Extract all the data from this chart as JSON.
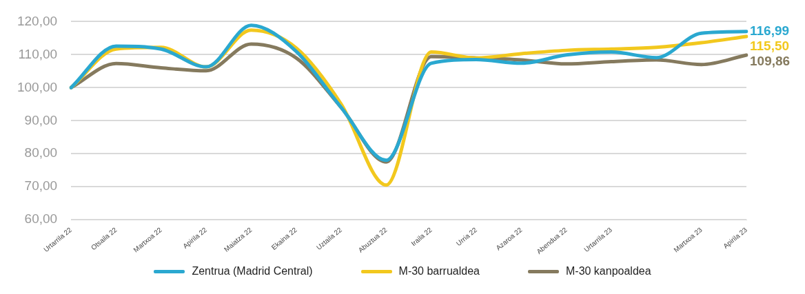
{
  "chart_data": {
    "type": "line",
    "categories": [
      "Urtarrila 22",
      "Otsaila 22",
      "Martxoa 22",
      "Apirila 22",
      "Maiatza 22",
      "Ekaina 22",
      "Uztaila 22",
      "Abuztua 22",
      "Iraila 22",
      "Urria 22",
      "Azaroa 22",
      "Abendua 22",
      "Urtarrila 23",
      null,
      "Martxoa 23",
      "Apirila 23"
    ],
    "series": [
      {
        "name": "Zentrua (Madrid Central)",
        "color": "#2aa8d0",
        "values": [
          100,
          112.6,
          111.7,
          106.3,
          118.9,
          111,
          94,
          78,
          107.4,
          108.5,
          107.4,
          109.9,
          110.8,
          109.1,
          116.5,
          116.99
        ],
        "value_labels": [
          null,
          null,
          null,
          null,
          null,
          null,
          null,
          null,
          null,
          null,
          null,
          null,
          null,
          null,
          null,
          "116,99"
        ]
      },
      {
        "name": "M-30 barrualdea",
        "color": "#f2c81e",
        "values": [
          100,
          111.7,
          112.2,
          106.3,
          117.4,
          112,
          95,
          70.5,
          110.8,
          109,
          110.3,
          111.3,
          111.7,
          112.2,
          113.6,
          115.5
        ],
        "value_labels": [
          null,
          null,
          null,
          null,
          null,
          null,
          null,
          null,
          null,
          null,
          null,
          null,
          null,
          null,
          null,
          "115,50"
        ]
      },
      {
        "name": "M-30 kanpoaldea",
        "color": "#857a5e",
        "values": [
          100,
          107.3,
          106,
          105.1,
          113.2,
          109,
          94,
          77.5,
          109.4,
          109,
          108.4,
          107.2,
          107.9,
          108.4,
          107,
          109.86
        ],
        "value_labels": [
          null,
          null,
          null,
          null,
          null,
          null,
          null,
          null,
          null,
          null,
          null,
          null,
          null,
          null,
          null,
          "109,86"
        ]
      }
    ],
    "ylim": [
      60,
      120
    ],
    "yticks": [
      {
        "value": 60,
        "label": "60,00"
      },
      {
        "value": 70,
        "label": "70,00"
      },
      {
        "value": 80,
        "label": "80,00"
      },
      {
        "value": 90,
        "label": "90,00"
      },
      {
        "value": 100,
        "label": "100,00"
      },
      {
        "value": 110,
        "label": "110,00"
      },
      {
        "value": 120,
        "label": "120,00"
      }
    ],
    "grid": "y",
    "legend": "bottom",
    "marker": "none",
    "line_style": "solid"
  }
}
